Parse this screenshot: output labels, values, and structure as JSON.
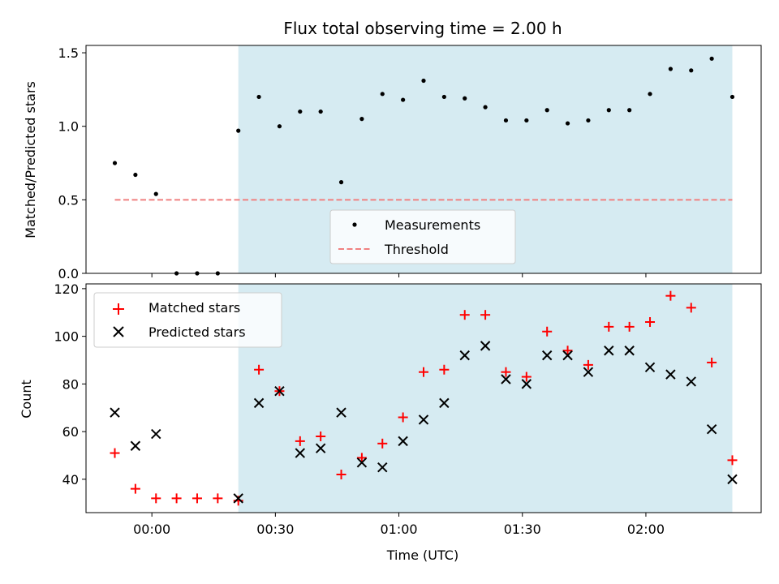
{
  "title": "Flux total observing time = 2.00 h",
  "colors": {
    "shade": "#add8e6",
    "measurement": "#000000",
    "threshold": "#f08080",
    "matched": "#ff0000",
    "predicted": "#000000"
  },
  "chart_data": [
    {
      "type": "scatter",
      "ylabel": "Matched/Predicted stars",
      "ylim": [
        0,
        1.55
      ],
      "yticks": [
        "0.0",
        "0.5",
        "1.0",
        "1.5"
      ],
      "ytick_values": [
        0,
        0.5,
        1.0,
        1.5
      ],
      "shaded_region_minutes": [
        21,
        141
      ],
      "legend": {
        "placement": "lower-center",
        "entries": [
          "Measurements",
          "Threshold"
        ]
      },
      "threshold": {
        "name": "Threshold",
        "y": 0.5,
        "x_range_minutes": [
          -9,
          141
        ]
      },
      "series": [
        {
          "name": "Measurements",
          "x_minutes": [
            -9,
            -4,
            1,
            6,
            11,
            16,
            21,
            26,
            31,
            36,
            41,
            46,
            51,
            56,
            61,
            66,
            71,
            76,
            81,
            86,
            91,
            96,
            101,
            106,
            111,
            116,
            121,
            126,
            131,
            136,
            141
          ],
          "values": [
            0.75,
            0.67,
            0.54,
            0.0,
            0.0,
            0.0,
            0.97,
            1.2,
            1.0,
            1.1,
            1.1,
            0.62,
            1.05,
            1.22,
            1.18,
            1.31,
            1.2,
            1.19,
            1.13,
            1.04,
            1.04,
            1.11,
            1.02,
            1.04,
            1.11,
            1.11,
            1.22,
            1.39,
            1.38,
            1.46,
            1.2
          ]
        }
      ]
    },
    {
      "type": "scatter",
      "xlabel": "Time (UTC)",
      "ylabel": "Count",
      "ylim": [
        26,
        122
      ],
      "yticks": [
        "40",
        "60",
        "80",
        "100",
        "120"
      ],
      "ytick_values": [
        40,
        60,
        80,
        100,
        120
      ],
      "xlim_minutes": [
        -16,
        148
      ],
      "xticks": [
        "00:00",
        "00:30",
        "01:00",
        "01:30",
        "02:00"
      ],
      "xtick_values_minutes": [
        0,
        30,
        60,
        90,
        120
      ],
      "shaded_region_minutes": [
        21,
        141
      ],
      "legend": {
        "placement": "upper-left",
        "entries": [
          "Matched stars",
          "Predicted stars"
        ]
      },
      "series": [
        {
          "name": "Matched stars",
          "x_minutes": [
            -9,
            -4,
            1,
            6,
            11,
            16,
            21,
            26,
            31,
            36,
            41,
            46,
            51,
            56,
            61,
            66,
            71,
            76,
            81,
            86,
            91,
            96,
            101,
            106,
            111,
            116,
            121,
            126,
            131,
            136,
            141
          ],
          "values": [
            51,
            36,
            32,
            32,
            32,
            32,
            31,
            86,
            77,
            56,
            58,
            42,
            49,
            55,
            66,
            85,
            86,
            109,
            109,
            85,
            83,
            102,
            94,
            88,
            104,
            104,
            106,
            117,
            112,
            89,
            48
          ]
        },
        {
          "name": "Predicted stars",
          "x_minutes": [
            -9,
            -4,
            1,
            21,
            26,
            31,
            36,
            41,
            46,
            51,
            56,
            61,
            66,
            71,
            76,
            81,
            86,
            91,
            96,
            101,
            106,
            111,
            116,
            121,
            126,
            131,
            136,
            141
          ],
          "values": [
            68,
            54,
            59,
            32,
            72,
            77,
            51,
            53,
            68,
            47,
            45,
            56,
            65,
            72,
            92,
            96,
            82,
            80,
            92,
            92,
            85,
            94,
            94,
            87,
            84,
            81,
            61,
            40
          ]
        }
      ]
    }
  ]
}
